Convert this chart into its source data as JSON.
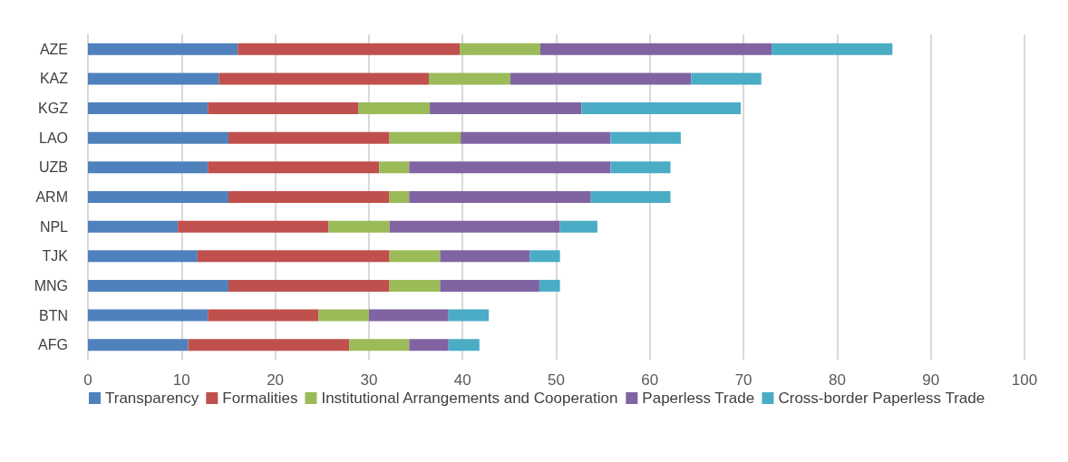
{
  "chart_data": {
    "type": "bar",
    "orientation": "horizontal",
    "stacked": true,
    "categories": [
      "AZE",
      "KAZ",
      "KGZ",
      "LAO",
      "UZB",
      "ARM",
      "NPL",
      "TJK",
      "MNG",
      "BTN",
      "AFG"
    ],
    "series": [
      {
        "name": "Transparency",
        "color": "#4f81bd",
        "values": [
          16.0,
          14.0,
          12.8,
          15.0,
          12.8,
          15.0,
          9.6,
          11.7,
          15.0,
          12.8,
          10.7
        ]
      },
      {
        "name": "Formalities",
        "color": "#c0504d",
        "values": [
          23.7,
          22.4,
          16.1,
          17.2,
          18.3,
          17.2,
          16.1,
          20.5,
          17.2,
          11.8,
          17.2
        ]
      },
      {
        "name": "Institutional Arrangements and Cooperation",
        "color": "#9bbb59",
        "values": [
          8.6,
          8.7,
          7.6,
          7.6,
          3.2,
          2.1,
          6.5,
          5.4,
          5.4,
          5.4,
          6.4
        ]
      },
      {
        "name": "Paperless Trade",
        "color": "#8064a2",
        "values": [
          24.7,
          19.3,
          16.2,
          16.0,
          21.5,
          19.4,
          18.2,
          9.6,
          10.6,
          8.5,
          4.2
        ]
      },
      {
        "name": "Cross-border Paperless Trade",
        "color": "#4bacc6",
        "values": [
          12.9,
          7.5,
          17.0,
          7.5,
          6.4,
          8.5,
          4.0,
          3.2,
          2.2,
          4.3,
          3.3
        ]
      }
    ],
    "xlim": [
      0,
      100
    ],
    "xticks": [
      0,
      10,
      20,
      30,
      40,
      50,
      60,
      70,
      80,
      90,
      100
    ],
    "grid": "x",
    "legend": "bottom"
  }
}
